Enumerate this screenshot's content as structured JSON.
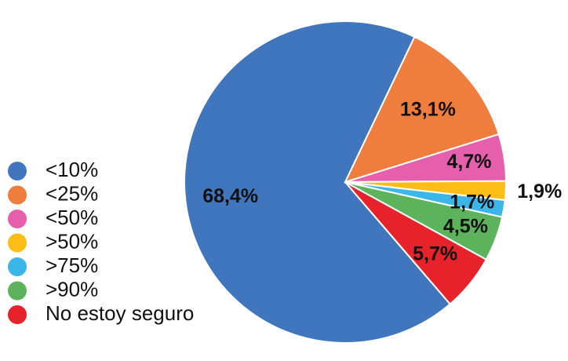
{
  "chart_data": {
    "type": "pie",
    "categories": [
      "<10%",
      "<25%",
      "<50%",
      ">50%",
      ">75%",
      ">90%",
      "No estoy seguro"
    ],
    "values": [
      68.4,
      13.1,
      4.7,
      1.9,
      1.7,
      4.5,
      5.7
    ],
    "value_labels": [
      "68,4%",
      "13,1%",
      "4,7%",
      "1,9%",
      "1,7%",
      "4,5%",
      "5,7%"
    ],
    "colors": [
      "#3f76bd",
      "#ef7d3d",
      "#e65fad",
      "#fdbd17",
      "#3bb6e8",
      "#5db35b",
      "#e8222b"
    ]
  }
}
